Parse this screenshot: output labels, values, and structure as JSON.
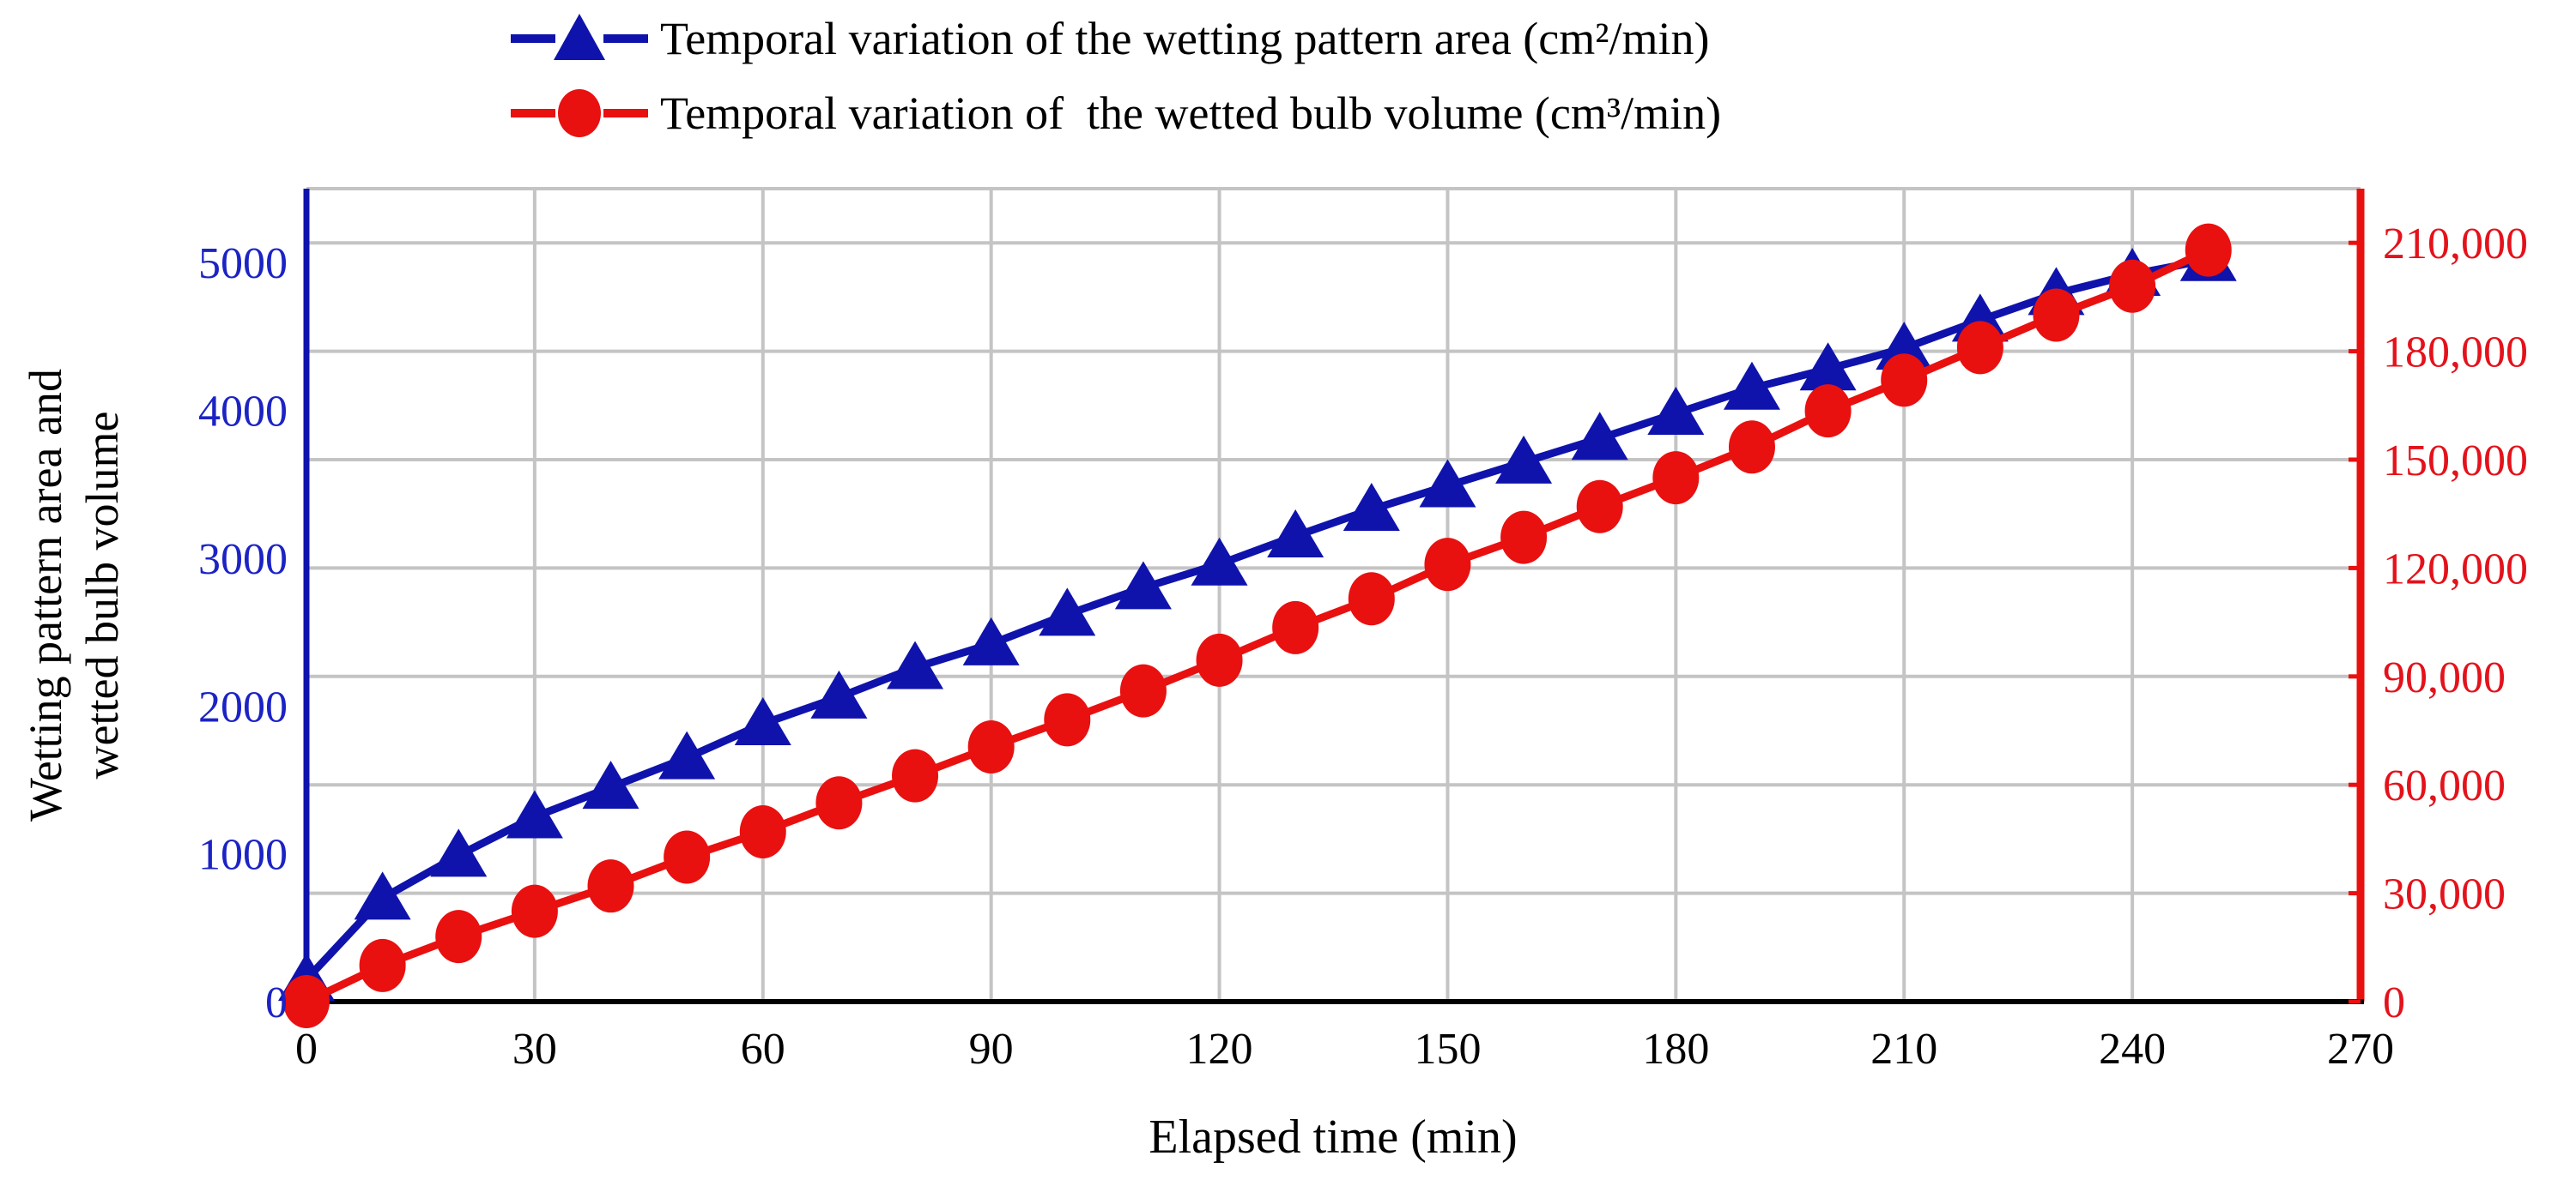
{
  "page": {
    "background": "#ffffff"
  },
  "legend": {
    "position": "top-center",
    "items": [
      {
        "label": "Temporal variation of the wetting pattern area (cm²/min)",
        "marker": "triangle",
        "color": "#0f13ac"
      },
      {
        "label": "Temporal variation of  the wetted bulb volume (cm³/min)",
        "marker": "circle",
        "color": "#e91010"
      }
    ]
  },
  "chart_data": {
    "type": "line",
    "title": "",
    "x": [
      0,
      10,
      20,
      30,
      40,
      50,
      60,
      70,
      80,
      90,
      100,
      110,
      120,
      130,
      140,
      150,
      160,
      170,
      180,
      190,
      200,
      210,
      220,
      230,
      240,
      250
    ],
    "series": [
      {
        "name": "Temporal variation of the wetting pattern area (cm²/min)",
        "axis": "left",
        "color": "#0f13ac",
        "marker": "triangle",
        "values": [
          150,
          700,
          990,
          1250,
          1450,
          1650,
          1880,
          2060,
          2260,
          2420,
          2620,
          2800,
          2960,
          3150,
          3330,
          3490,
          3650,
          3810,
          3980,
          4150,
          4280,
          4420,
          4610,
          4790,
          4920,
          5020
        ]
      },
      {
        "name": "Temporal variation of  the wetted bulb volume (cm³/min)",
        "axis": "right",
        "color": "#e91010",
        "marker": "circle",
        "values": [
          0,
          10000,
          18000,
          25000,
          32000,
          40000,
          47000,
          55000,
          62500,
          70500,
          78000,
          86000,
          94500,
          103500,
          111500,
          121000,
          128500,
          137000,
          145000,
          153500,
          163500,
          172000,
          181000,
          190000,
          198000,
          208000
        ]
      }
    ],
    "x_axis": {
      "title": "Elapsed time (min)",
      "min": 0,
      "max": 270,
      "tick_step": 30,
      "ticks": [
        "0",
        "30",
        "60",
        "90",
        "120",
        "150",
        "180",
        "210",
        "240",
        "270"
      ],
      "line_color": "#000000",
      "label_color": "#000000"
    },
    "left_axis": {
      "title_lines": [
        "Wetting pattern area and",
        "wetted bulb volume"
      ],
      "min": 0,
      "max": 5500,
      "tick_step": 1000,
      "ticks": [
        "0",
        "1000",
        "2000",
        "3000",
        "4000",
        "5000"
      ],
      "label_color": "#1c23c4",
      "line_color": "#0f13ac"
    },
    "right_axis": {
      "min": 0,
      "max": 225000,
      "tick_step": 30000,
      "ticks": [
        "0",
        "30,000",
        "60,000",
        "90,000",
        "120,000",
        "150,000",
        "180,000",
        "210,000"
      ],
      "label_color": "#e3121b",
      "line_color": "#e91010"
    },
    "grid": {
      "on": true,
      "color": "#c4c4c4",
      "horizontal": "right-axis-majors",
      "vertical": "x-axis-majors"
    },
    "legend_position": "top-center"
  }
}
